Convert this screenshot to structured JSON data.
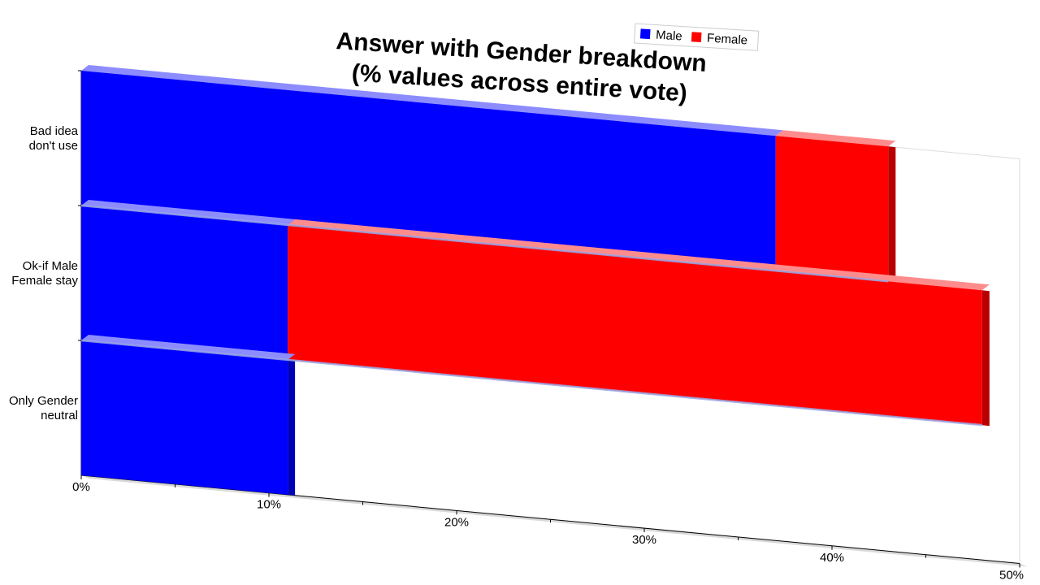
{
  "chart_data": {
    "type": "bar",
    "orientation": "horizontal",
    "stacked": true,
    "title_lines": [
      "Answer with Gender breakdown",
      "(% values across entire vote)"
    ],
    "categories": [
      {
        "lines": [
          "Bad idea",
          "don't use"
        ]
      },
      {
        "lines": [
          "Ok-if Male",
          "Female stay"
        ]
      },
      {
        "lines": [
          "Only Gender",
          "neutral"
        ]
      }
    ],
    "series": [
      {
        "name": "Male",
        "color": "#0000ff",
        "values": [
          37,
          11,
          11
        ]
      },
      {
        "name": "Female",
        "color": "#ff0000",
        "values": [
          6,
          37,
          0
        ]
      }
    ],
    "xticks": [
      "0%",
      "10%",
      "20%",
      "30%",
      "40%",
      "50%"
    ],
    "xlim": [
      0,
      50
    ],
    "legend_position": "top",
    "grid": false
  }
}
